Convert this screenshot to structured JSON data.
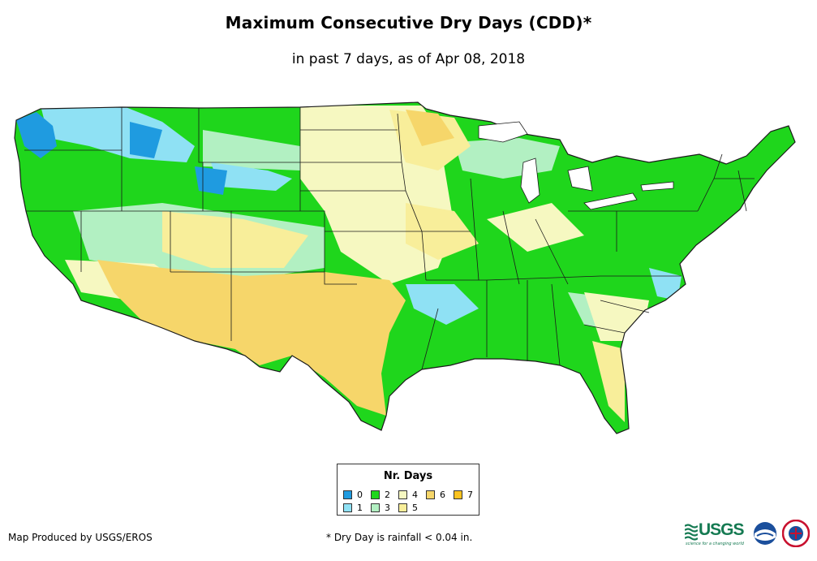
{
  "title": "Maximum Consecutive Dry Days (CDD)*",
  "subtitle": "in past 7 days, as of Apr 08, 2018",
  "legend": {
    "title": "Nr. Days",
    "items": [
      {
        "label": "0",
        "color": "#1f9be0"
      },
      {
        "label": "1",
        "color": "#8fe1f4"
      },
      {
        "label": "2",
        "color": "#1fd61c"
      },
      {
        "label": "3",
        "color": "#b2f0c2"
      },
      {
        "label": "4",
        "color": "#f6f8c1"
      },
      {
        "label": "5",
        "color": "#f8ee9a"
      },
      {
        "label": "6",
        "color": "#f6d66a"
      },
      {
        "label": "7",
        "color": "#fbc320"
      }
    ]
  },
  "map": {
    "region": "Contiguous United States",
    "colors": {
      "ocean": "#ffffff",
      "border": "#1a1a1a"
    }
  },
  "credit": "Map Produced by USGS/EROS",
  "footnote": "* Dry Day is rainfall < 0.04 in.",
  "logos": {
    "usgs_text": "USGS",
    "usgs_tagline": "science for a changing world",
    "noaa_icon": "noaa-logo-icon",
    "nws_icon": "nws-logo-icon"
  }
}
